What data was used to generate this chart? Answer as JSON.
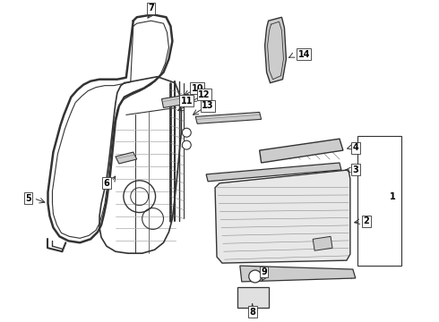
{
  "bg": "#ffffff",
  "lc": "#333333",
  "gray": "#aaaaaa",
  "lgray": "#cccccc",
  "dgray": "#888888"
}
